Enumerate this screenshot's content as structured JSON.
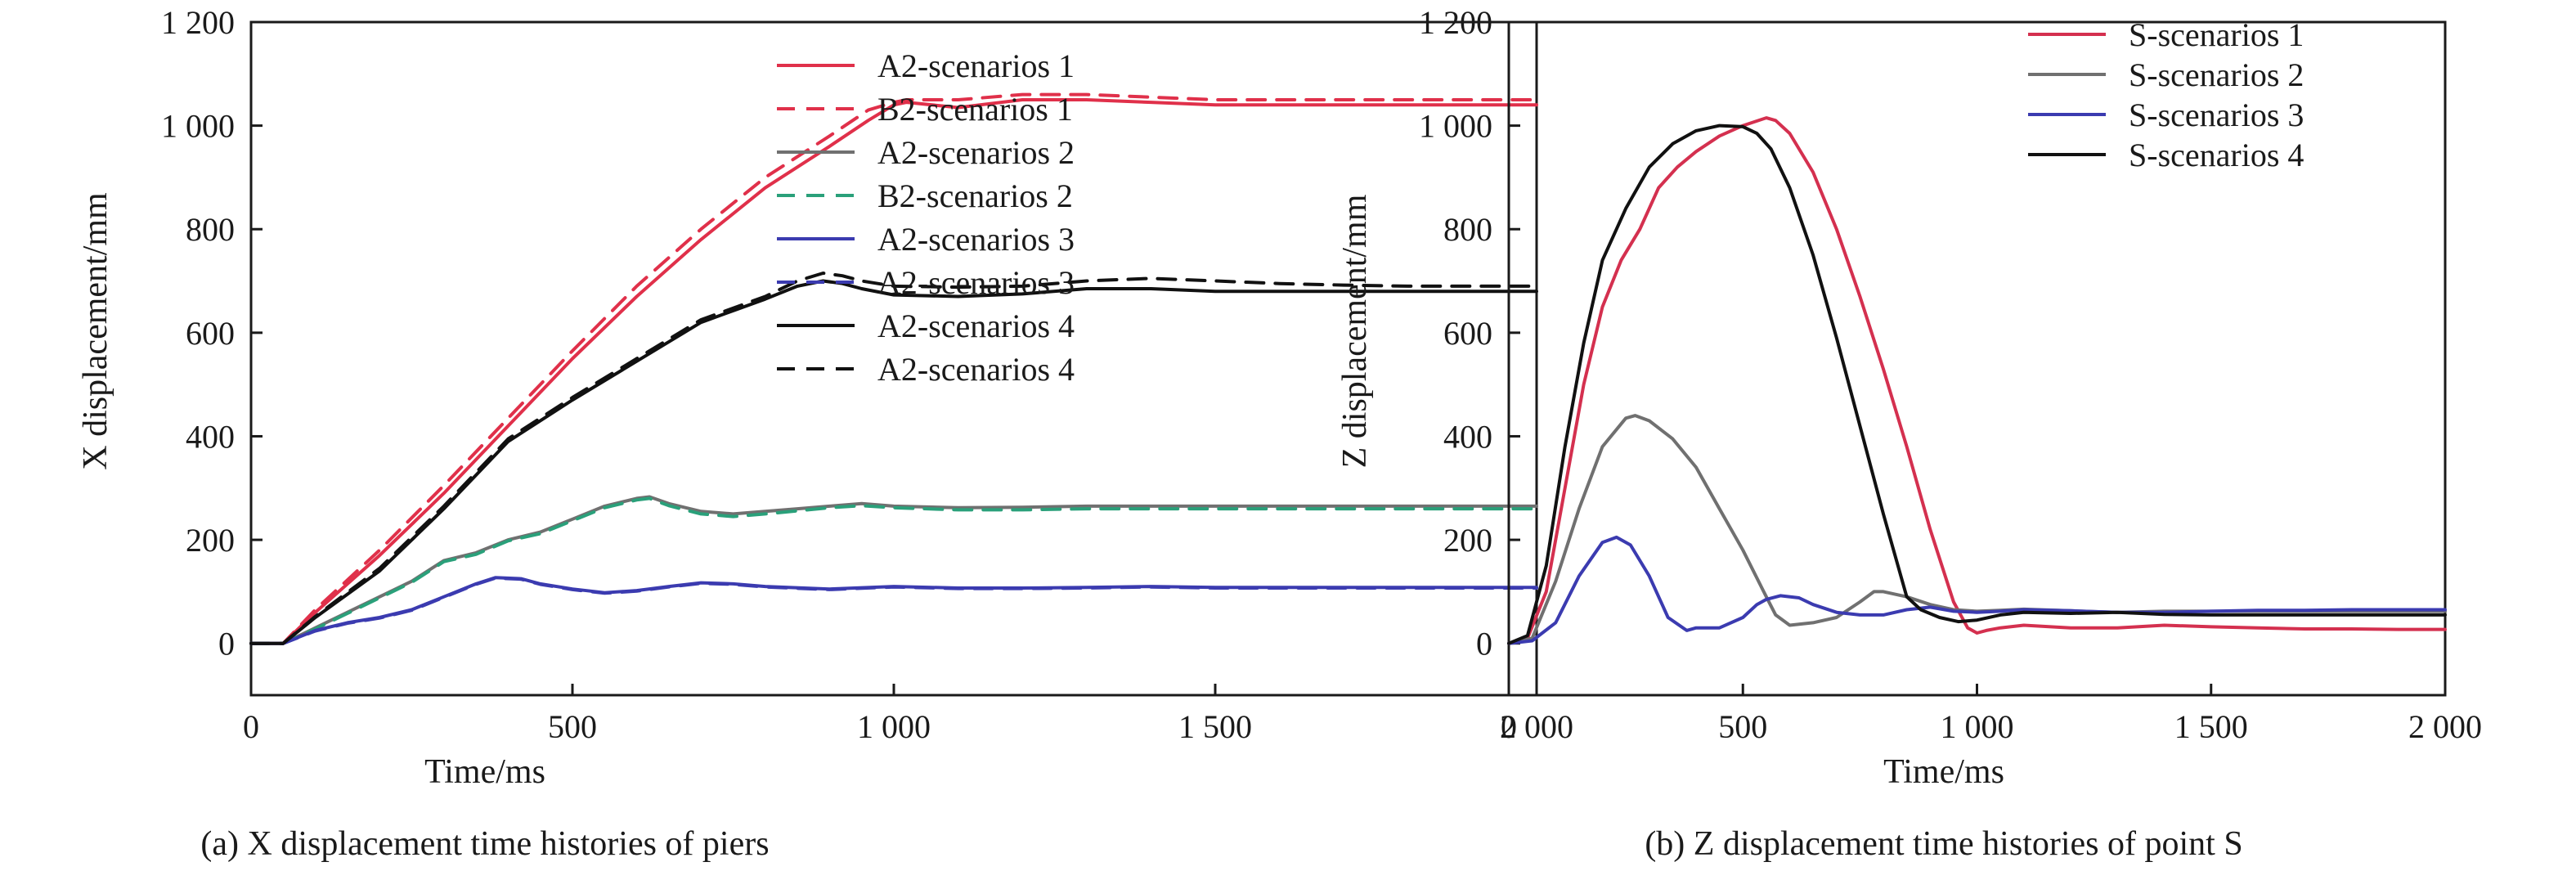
{
  "chart_data": [
    {
      "type": "line",
      "caption": "(a) X displacement time histories of piers",
      "xlabel": "Time/ms",
      "ylabel": "X displacement/mm",
      "xlim": [
        0,
        2000
      ],
      "ylim": [
        -100,
        1200
      ],
      "xticks": [
        0,
        500,
        1000,
        1500,
        2000
      ],
      "yticks": [
        0,
        200,
        400,
        600,
        800,
        1000,
        1200
      ],
      "xtick_labels": [
        "0",
        "500",
        "1 000",
        "1 500",
        "2 000"
      ],
      "ytick_labels": [
        "0",
        "200",
        "400",
        "600",
        "800",
        "1 000",
        "1 200"
      ],
      "grid": false,
      "legend_position": "top-right",
      "series": [
        {
          "name": "A2-scenarios 1",
          "color": "#e0304a",
          "dash": false,
          "x": [
            0,
            50,
            100,
            200,
            300,
            400,
            500,
            600,
            700,
            800,
            900,
            960,
            1000,
            1020,
            1100,
            1200,
            1300,
            1400,
            1500,
            1600,
            1700,
            1800,
            1900,
            2000
          ],
          "y": [
            0,
            0,
            60,
            170,
            290,
            420,
            550,
            670,
            780,
            880,
            960,
            1010,
            1040,
            1045,
            1035,
            1050,
            1050,
            1045,
            1040,
            1040,
            1040,
            1040,
            1040,
            1040
          ]
        },
        {
          "name": "B2-scenarios 1",
          "color": "#e0304a",
          "dash": true,
          "x": [
            0,
            50,
            100,
            200,
            300,
            400,
            500,
            600,
            700,
            800,
            900,
            960,
            1000,
            1020,
            1100,
            1200,
            1300,
            1400,
            1500,
            1600,
            1700,
            1800,
            1900,
            2000
          ],
          "y": [
            0,
            0,
            65,
            180,
            305,
            435,
            565,
            690,
            800,
            900,
            980,
            1030,
            1045,
            1050,
            1050,
            1060,
            1060,
            1055,
            1050,
            1050,
            1050,
            1050,
            1050,
            1050
          ]
        },
        {
          "name": "A2-scenarios 2",
          "color": "#707070",
          "dash": false,
          "x": [
            0,
            50,
            100,
            150,
            200,
            250,
            300,
            350,
            400,
            450,
            500,
            550,
            600,
            620,
            650,
            700,
            750,
            800,
            850,
            900,
            950,
            1000,
            1100,
            1200,
            1300,
            1400,
            1500,
            1600,
            1700,
            1800,
            1900,
            2000
          ],
          "y": [
            0,
            0,
            30,
            60,
            90,
            120,
            160,
            175,
            200,
            215,
            240,
            265,
            280,
            283,
            270,
            255,
            250,
            255,
            260,
            265,
            270,
            265,
            262,
            263,
            265,
            265,
            265,
            265,
            265,
            265,
            265,
            265
          ]
        },
        {
          "name": "B2-scenarios 2",
          "color": "#2aa07a",
          "dash": true,
          "x": [
            0,
            50,
            100,
            150,
            200,
            250,
            300,
            350,
            400,
            450,
            500,
            550,
            600,
            620,
            650,
            700,
            750,
            800,
            850,
            900,
            950,
            1000,
            1100,
            1200,
            1300,
            1400,
            1500,
            1600,
            1700,
            1800,
            1900,
            2000
          ],
          "y": [
            0,
            0,
            28,
            58,
            88,
            118,
            158,
            172,
            198,
            212,
            237,
            262,
            277,
            280,
            266,
            250,
            245,
            250,
            256,
            262,
            266,
            262,
            258,
            258,
            260,
            260,
            260,
            260,
            260,
            260,
            260,
            260
          ]
        },
        {
          "name": "A2-scenarios 3",
          "color": "#3b3bb0",
          "dash": false,
          "x": [
            0,
            50,
            100,
            150,
            200,
            250,
            300,
            350,
            380,
            420,
            450,
            500,
            550,
            600,
            650,
            700,
            750,
            800,
            900,
            1000,
            1100,
            1200,
            1300,
            1400,
            1500,
            1600,
            1700,
            1800,
            1900,
            2000
          ],
          "y": [
            0,
            0,
            25,
            40,
            50,
            65,
            90,
            115,
            127,
            125,
            115,
            105,
            98,
            102,
            110,
            117,
            115,
            110,
            105,
            110,
            107,
            107,
            108,
            110,
            108,
            108,
            108,
            108,
            108,
            108
          ]
        },
        {
          "name": "A2-scenarios 3",
          "color": "#3b3bb0",
          "dash": true,
          "x": [
            0,
            50,
            100,
            150,
            200,
            250,
            300,
            350,
            380,
            420,
            450,
            500,
            550,
            600,
            650,
            700,
            750,
            800,
            900,
            1000,
            1100,
            1200,
            1300,
            1400,
            1500,
            1600,
            1700,
            1800,
            1900,
            2000
          ],
          "y": [
            0,
            0,
            24,
            39,
            49,
            64,
            89,
            114,
            126,
            124,
            114,
            104,
            97,
            101,
            109,
            116,
            114,
            109,
            104,
            109,
            106,
            106,
            107,
            109,
            107,
            107,
            107,
            107,
            107,
            107
          ]
        },
        {
          "name": "A2-scenarios 4",
          "color": "#111111",
          "dash": false,
          "x": [
            0,
            50,
            100,
            200,
            300,
            400,
            500,
            600,
            700,
            800,
            850,
            890,
            920,
            950,
            1000,
            1100,
            1200,
            1300,
            1400,
            1500,
            1600,
            1700,
            1800,
            1900,
            2000
          ],
          "y": [
            0,
            0,
            50,
            140,
            260,
            390,
            470,
            545,
            620,
            665,
            690,
            700,
            695,
            685,
            673,
            670,
            675,
            685,
            685,
            680,
            680,
            680,
            680,
            680,
            680
          ]
        },
        {
          "name": "A2-scenarios 4",
          "color": "#111111",
          "dash": true,
          "x": [
            0,
            50,
            100,
            200,
            300,
            400,
            500,
            600,
            700,
            800,
            850,
            890,
            920,
            950,
            1000,
            1100,
            1200,
            1300,
            1400,
            1500,
            1600,
            1700,
            1800,
            1900,
            2000
          ],
          "y": [
            0,
            0,
            52,
            145,
            265,
            395,
            475,
            550,
            625,
            670,
            700,
            715,
            710,
            700,
            690,
            688,
            690,
            700,
            705,
            700,
            695,
            692,
            690,
            690,
            690
          ]
        }
      ]
    },
    {
      "type": "line",
      "caption": "(b) Z displacement time histories of point S",
      "xlabel": "Time/ms",
      "ylabel": "Z displacement/mm",
      "xlim": [
        0,
        2000
      ],
      "ylim": [
        -100,
        1200
      ],
      "xticks": [
        0,
        500,
        1000,
        1500,
        2000
      ],
      "yticks": [
        0,
        200,
        400,
        600,
        800,
        1000,
        1200
      ],
      "xtick_labels": [
        "0",
        "500",
        "1 000",
        "1 500",
        "2 000"
      ],
      "ytick_labels": [
        "0",
        "200",
        "400",
        "600",
        "800",
        "1 000",
        "1 200"
      ],
      "grid": false,
      "legend_position": "top-right",
      "series": [
        {
          "name": "S-scenarios 1",
          "color": "#d4304f",
          "dash": false,
          "x": [
            0,
            40,
            80,
            120,
            160,
            200,
            240,
            280,
            320,
            360,
            400,
            450,
            500,
            550,
            570,
            600,
            650,
            700,
            750,
            800,
            850,
            900,
            950,
            980,
            1000,
            1020,
            1050,
            1100,
            1200,
            1300,
            1400,
            1500,
            1600,
            1700,
            1800,
            1900,
            2000
          ],
          "y": [
            0,
            10,
            100,
            300,
            500,
            650,
            740,
            800,
            880,
            920,
            950,
            980,
            1000,
            1015,
            1010,
            985,
            910,
            800,
            670,
            530,
            380,
            220,
            80,
            30,
            20,
            25,
            30,
            35,
            30,
            30,
            35,
            32,
            30,
            28,
            28,
            27,
            27
          ]
        },
        {
          "name": "S-scenarios 2",
          "color": "#707070",
          "dash": false,
          "x": [
            0,
            50,
            100,
            150,
            200,
            250,
            270,
            300,
            350,
            400,
            450,
            500,
            550,
            570,
            600,
            650,
            700,
            750,
            780,
            800,
            850,
            900,
            950,
            1000,
            1050,
            1100,
            1200,
            1300,
            1400,
            1500,
            1600,
            1700,
            1800,
            1900,
            2000
          ],
          "y": [
            0,
            10,
            120,
            260,
            380,
            435,
            440,
            430,
            395,
            340,
            260,
            180,
            90,
            55,
            35,
            40,
            50,
            80,
            100,
            100,
            90,
            75,
            65,
            62,
            64,
            66,
            63,
            60,
            62,
            62,
            62,
            62,
            62,
            62,
            62
          ]
        },
        {
          "name": "S-scenarios 3",
          "color": "#3b3bb0",
          "dash": false,
          "x": [
            0,
            50,
            100,
            150,
            200,
            230,
            260,
            300,
            340,
            380,
            400,
            420,
            450,
            500,
            530,
            550,
            580,
            620,
            650,
            700,
            750,
            800,
            850,
            900,
            950,
            1000,
            1050,
            1100,
            1200,
            1300,
            1400,
            1500,
            1600,
            1700,
            1800,
            1900,
            2000
          ],
          "y": [
            0,
            5,
            40,
            130,
            195,
            205,
            190,
            130,
            50,
            25,
            30,
            30,
            30,
            50,
            75,
            85,
            92,
            88,
            75,
            60,
            55,
            55,
            65,
            70,
            62,
            60,
            62,
            65,
            63,
            60,
            60,
            62,
            64,
            64,
            65,
            65,
            65
          ]
        },
        {
          "name": "S-scenarios 4",
          "color": "#111111",
          "dash": false,
          "x": [
            0,
            40,
            80,
            120,
            160,
            200,
            250,
            300,
            350,
            400,
            450,
            500,
            530,
            560,
            600,
            650,
            700,
            750,
            800,
            850,
            880,
            920,
            960,
            1000,
            1050,
            1100,
            1200,
            1300,
            1400,
            1500,
            1600,
            1700,
            1800,
            1900,
            2000
          ],
          "y": [
            0,
            15,
            150,
            380,
            580,
            740,
            840,
            920,
            965,
            990,
            1000,
            998,
            985,
            955,
            880,
            750,
            590,
            420,
            250,
            90,
            65,
            50,
            42,
            45,
            55,
            60,
            58,
            60,
            56,
            55,
            55,
            55,
            55,
            55,
            55
          ]
        }
      ]
    }
  ]
}
